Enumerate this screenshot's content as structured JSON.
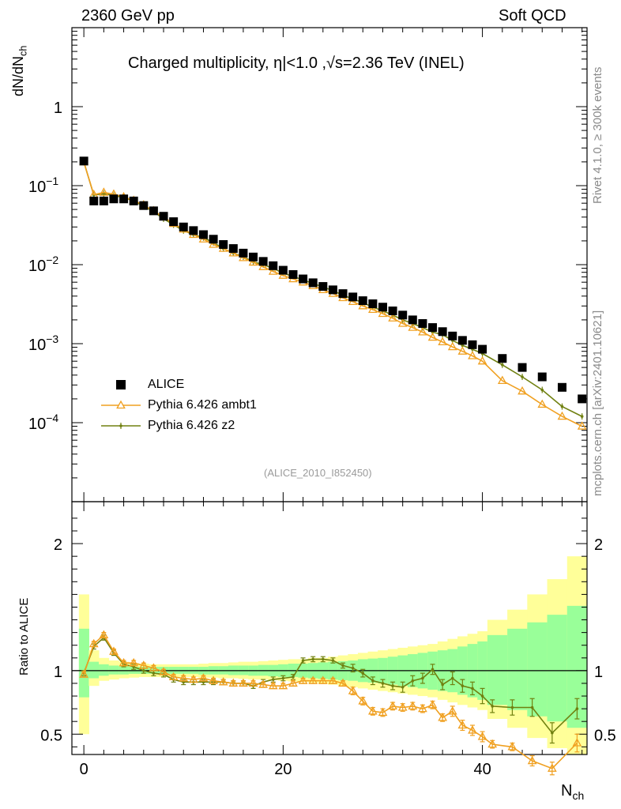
{
  "header": {
    "left": "2360 GeV pp",
    "right": "Soft QCD",
    "title": "Charged multiplicity, η|<1.0 ,√s=2.36 TeV (INEL)",
    "side_rivet": "Rivet 4.1.0, ≥ 300k events",
    "side_mcplots": "mcplots.cern.ch [arXiv:2401.10621]",
    "watermark": "(ALICE_2010_I852450)"
  },
  "colors": {
    "data": "#000000",
    "ambt1": "#f0a020",
    "z2": "#708010",
    "band_outer": "#ffff99",
    "band_inner": "#99ff99"
  },
  "chart_data": [
    {
      "type": "scatter",
      "name": "main",
      "ylabel_main": "dN/dN",
      "ylabel_sub": "ch",
      "xlabel_main": "N",
      "xlabel_sub": "ch",
      "xlim": [
        -1.2,
        50.5
      ],
      "ylim": [
        1e-05,
        10
      ],
      "yscale": "log",
      "x_ticks": [
        0,
        20,
        40
      ],
      "y_tick_labels": [
        {
          "value": 1,
          "text": "1"
        },
        {
          "value": 0.1,
          "base": "10",
          "exp": "−1"
        },
        {
          "value": 0.01,
          "base": "10",
          "exp": "−2"
        },
        {
          "value": 0.001,
          "base": "10",
          "exp": "−3"
        },
        {
          "value": 0.0001,
          "base": "10",
          "exp": "−4"
        }
      ],
      "legend": [
        "ALICE",
        "Pythia 6.426 ambt1",
        "Pythia 6.426 z2"
      ],
      "series": [
        {
          "name": "ALICE",
          "x": [
            0,
            1,
            2,
            3,
            4,
            5,
            6,
            7,
            8,
            9,
            10,
            11,
            12,
            13,
            14,
            15,
            16,
            17,
            18,
            19,
            20,
            21,
            22,
            23,
            24,
            25,
            26,
            27,
            28,
            29,
            30,
            31,
            32,
            33,
            34,
            35,
            36,
            37,
            38,
            39,
            40,
            42,
            44,
            46,
            48,
            50
          ],
          "y": [
            0.205,
            0.064,
            0.064,
            0.068,
            0.068,
            0.064,
            0.056,
            0.048,
            0.041,
            0.035,
            0.03,
            0.027,
            0.024,
            0.021,
            0.018,
            0.016,
            0.014,
            0.0125,
            0.011,
            0.0097,
            0.0085,
            0.0075,
            0.0066,
            0.0059,
            0.0053,
            0.0048,
            0.0043,
            0.0039,
            0.0035,
            0.0032,
            0.0029,
            0.0026,
            0.0023,
            0.002,
            0.0018,
            0.0016,
            0.00142,
            0.00125,
            0.0011,
            0.00097,
            0.00085,
            0.00065,
            0.0005,
            0.00038,
            0.00028,
            0.0002
          ]
        },
        {
          "name": "Pythia 6.426 ambt1",
          "x": [
            0,
            1,
            2,
            3,
            4,
            5,
            6,
            7,
            8,
            9,
            10,
            11,
            12,
            13,
            14,
            15,
            16,
            17,
            18,
            19,
            20,
            21,
            22,
            23,
            24,
            25,
            26,
            27,
            28,
            29,
            30,
            31,
            32,
            33,
            34,
            35,
            36,
            37,
            38,
            39,
            40,
            42,
            44,
            46,
            48,
            50
          ],
          "y": [
            0.199,
            0.077,
            0.082,
            0.078,
            0.072,
            0.065,
            0.057,
            0.048,
            0.04,
            0.033,
            0.028,
            0.024,
            0.021,
            0.018,
            0.016,
            0.014,
            0.0122,
            0.0107,
            0.0094,
            0.0082,
            0.0073,
            0.0066,
            0.006,
            0.0054,
            0.0048,
            0.0043,
            0.0038,
            0.0034,
            0.003,
            0.0027,
            0.0024,
            0.0021,
            0.0018,
            0.0016,
            0.0014,
            0.0012,
            0.00105,
            0.00091,
            0.0008,
            0.0007,
            0.0006,
            0.00034,
            0.00025,
            0.00017,
            0.00012,
            9e-05
          ]
        },
        {
          "name": "Pythia 6.426 z2",
          "x": [
            0,
            1,
            2,
            3,
            4,
            5,
            6,
            7,
            8,
            9,
            10,
            11,
            12,
            13,
            14,
            15,
            16,
            17,
            18,
            19,
            20,
            21,
            22,
            23,
            24,
            25,
            26,
            27,
            28,
            29,
            30,
            31,
            32,
            33,
            34,
            35,
            36,
            37,
            38,
            39,
            40,
            42,
            44,
            46,
            48,
            50
          ],
          "y": [
            0.2,
            0.076,
            0.079,
            0.075,
            0.071,
            0.064,
            0.055,
            0.047,
            0.038,
            0.032,
            0.027,
            0.024,
            0.022,
            0.019,
            0.016,
            0.014,
            0.0126,
            0.0109,
            0.01,
            0.009,
            0.0078,
            0.0071,
            0.0064,
            0.0058,
            0.0052,
            0.0047,
            0.0041,
            0.0037,
            0.0033,
            0.0029,
            0.0026,
            0.0023,
            0.002,
            0.0018,
            0.0016,
            0.0014,
            0.0013,
            0.0011,
            0.00095,
            0.00085,
            0.00075,
            0.00054,
            0.00038,
            0.00026,
            0.00016,
            0.00012
          ]
        }
      ]
    },
    {
      "type": "line",
      "name": "ratio",
      "ylabel": "Ratio to ALICE",
      "xlim": [
        -1.2,
        50.5
      ],
      "ylim": [
        0.34,
        2.33
      ],
      "x_ticks": [
        0,
        20,
        40
      ],
      "y_ticks": [
        0.5,
        1,
        2
      ],
      "y_tick_labels": [
        "0.5",
        "1",
        "2"
      ],
      "band": {
        "x_edges": [
          -0.5,
          0.5,
          1.5,
          2.5,
          3.5,
          4.5,
          5.5,
          6.5,
          7.5,
          8.5,
          9.5,
          10.5,
          11.5,
          12.5,
          13.5,
          14.5,
          15.5,
          16.5,
          17.5,
          18.5,
          19.5,
          20.5,
          21.5,
          22.5,
          23.5,
          24.5,
          25.5,
          26.5,
          27.5,
          28.5,
          29.5,
          30.5,
          31.5,
          32.5,
          33.5,
          34.5,
          35.5,
          36.5,
          37.5,
          38.5,
          39.5,
          40.5,
          42.5,
          44.5,
          46.5,
          48.5,
          50.5
        ],
        "outer_lo": [
          0.5,
          0.88,
          0.92,
          0.93,
          0.94,
          0.945,
          0.95,
          0.95,
          0.95,
          0.95,
          0.95,
          0.95,
          0.945,
          0.945,
          0.94,
          0.94,
          0.935,
          0.93,
          0.93,
          0.925,
          0.92,
          0.915,
          0.91,
          0.905,
          0.9,
          0.89,
          0.88,
          0.87,
          0.86,
          0.85,
          0.84,
          0.83,
          0.82,
          0.81,
          0.8,
          0.79,
          0.77,
          0.75,
          0.73,
          0.71,
          0.69,
          0.62,
          0.55,
          0.47,
          0.39,
          0.3
        ],
        "outer_hi": [
          1.6,
          1.16,
          1.1,
          1.08,
          1.07,
          1.06,
          1.055,
          1.05,
          1.05,
          1.05,
          1.05,
          1.05,
          1.055,
          1.06,
          1.06,
          1.065,
          1.07,
          1.07,
          1.075,
          1.08,
          1.085,
          1.09,
          1.09,
          1.1,
          1.1,
          1.11,
          1.12,
          1.13,
          1.14,
          1.15,
          1.16,
          1.17,
          1.18,
          1.19,
          1.2,
          1.21,
          1.23,
          1.25,
          1.27,
          1.29,
          1.31,
          1.4,
          1.48,
          1.6,
          1.72,
          1.9
        ],
        "inner_lo": [
          0.79,
          0.94,
          0.96,
          0.97,
          0.97,
          0.975,
          0.975,
          0.975,
          0.975,
          0.975,
          0.975,
          0.975,
          0.97,
          0.97,
          0.97,
          0.965,
          0.965,
          0.96,
          0.96,
          0.955,
          0.95,
          0.95,
          0.945,
          0.94,
          0.935,
          0.93,
          0.925,
          0.92,
          0.91,
          0.905,
          0.9,
          0.89,
          0.88,
          0.87,
          0.86,
          0.85,
          0.84,
          0.83,
          0.81,
          0.79,
          0.77,
          0.73,
          0.69,
          0.64,
          0.6,
          0.55
        ],
        "inner_hi": [
          1.33,
          1.07,
          1.05,
          1.04,
          1.035,
          1.03,
          1.03,
          1.03,
          1.03,
          1.03,
          1.03,
          1.03,
          1.03,
          1.035,
          1.035,
          1.04,
          1.04,
          1.04,
          1.045,
          1.045,
          1.05,
          1.055,
          1.055,
          1.06,
          1.065,
          1.07,
          1.075,
          1.08,
          1.09,
          1.095,
          1.1,
          1.11,
          1.12,
          1.13,
          1.14,
          1.15,
          1.16,
          1.17,
          1.19,
          1.21,
          1.23,
          1.28,
          1.33,
          1.38,
          1.44,
          1.51
        ]
      },
      "series": [
        {
          "name": "Pythia 6.426 ambt1",
          "x": [
            0,
            1,
            2,
            3,
            4,
            5,
            6,
            7,
            8,
            9,
            10,
            11,
            12,
            13,
            14,
            15,
            16,
            17,
            18,
            19,
            20,
            21,
            22,
            23,
            24,
            25,
            26,
            27,
            28,
            29,
            30,
            31,
            32,
            33,
            34,
            35,
            36,
            37,
            38,
            39,
            40,
            41,
            43,
            45,
            47,
            49.5
          ],
          "y": [
            0.97,
            1.21,
            1.28,
            1.15,
            1.06,
            1.06,
            1.04,
            1.02,
            0.99,
            0.95,
            0.94,
            0.93,
            0.94,
            0.92,
            0.91,
            0.9,
            0.9,
            0.9,
            0.89,
            0.88,
            0.88,
            0.9,
            0.92,
            0.92,
            0.92,
            0.92,
            0.9,
            0.84,
            0.76,
            0.68,
            0.67,
            0.72,
            0.71,
            0.72,
            0.7,
            0.73,
            0.63,
            0.68,
            0.57,
            0.53,
            0.48,
            0.42,
            0.4,
            0.29,
            0.23,
            0.43
          ],
          "err": [
            0.02,
            0.02,
            0.02,
            0.02,
            0.02,
            0.02,
            0.02,
            0.02,
            0.02,
            0.02,
            0.02,
            0.02,
            0.02,
            0.02,
            0.02,
            0.02,
            0.02,
            0.02,
            0.02,
            0.02,
            0.02,
            0.02,
            0.02,
            0.02,
            0.02,
            0.02,
            0.02,
            0.03,
            0.03,
            0.03,
            0.03,
            0.03,
            0.03,
            0.03,
            0.03,
            0.03,
            0.03,
            0.04,
            0.04,
            0.04,
            0.04,
            0.03,
            0.03,
            0.04,
            0.05,
            0.07
          ]
        },
        {
          "name": "Pythia 6.426 z2",
          "x": [
            0,
            1,
            2,
            3,
            4,
            5,
            6,
            7,
            8,
            9,
            10,
            11,
            12,
            13,
            14,
            15,
            16,
            17,
            18,
            19,
            20,
            21,
            22,
            23,
            24,
            25,
            26,
            27,
            28,
            29,
            30,
            31,
            32,
            33,
            34,
            35,
            36,
            37,
            38,
            39,
            40,
            41,
            43,
            45,
            47,
            49.5
          ],
          "y": [
            0.98,
            1.19,
            1.26,
            1.14,
            1.05,
            1.03,
            1.0,
            0.98,
            0.97,
            0.93,
            0.91,
            0.91,
            0.91,
            0.91,
            0.91,
            0.9,
            0.9,
            0.88,
            0.91,
            0.93,
            0.94,
            0.95,
            1.08,
            1.09,
            1.09,
            1.08,
            1.04,
            1.02,
            0.98,
            0.92,
            0.9,
            0.88,
            0.87,
            0.92,
            0.94,
            1.01,
            0.89,
            0.94,
            0.88,
            0.86,
            0.8,
            0.72,
            0.71,
            0.71,
            0.51,
            0.7
          ],
          "err": [
            0.02,
            0.02,
            0.02,
            0.02,
            0.02,
            0.02,
            0.02,
            0.02,
            0.02,
            0.02,
            0.02,
            0.02,
            0.02,
            0.02,
            0.02,
            0.02,
            0.02,
            0.02,
            0.02,
            0.02,
            0.02,
            0.02,
            0.02,
            0.02,
            0.02,
            0.02,
            0.02,
            0.03,
            0.03,
            0.03,
            0.03,
            0.03,
            0.04,
            0.04,
            0.04,
            0.04,
            0.04,
            0.05,
            0.05,
            0.05,
            0.06,
            0.05,
            0.06,
            0.07,
            0.08,
            0.08
          ]
        }
      ]
    }
  ]
}
